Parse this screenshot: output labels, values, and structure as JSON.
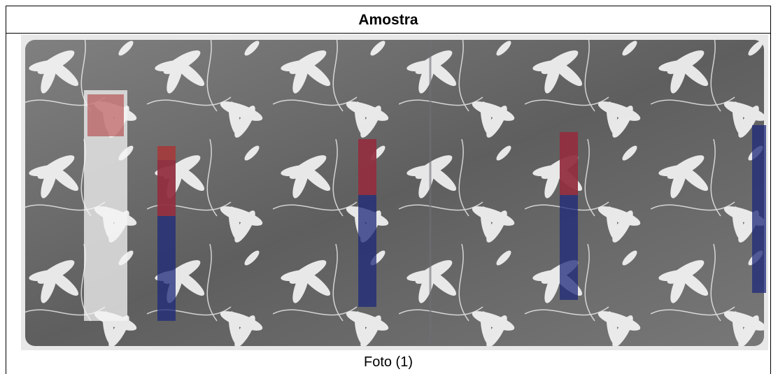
{
  "header": {
    "title": "Amostra"
  },
  "figure": {
    "caption": "Foto (1)"
  }
}
